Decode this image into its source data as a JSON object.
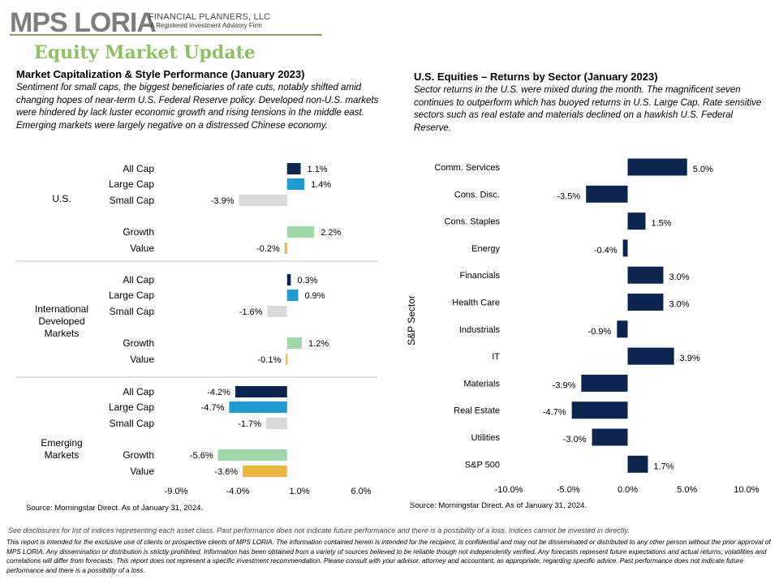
{
  "header": {
    "logo_text": "MPS LORIA",
    "logo_tagline": "FINANCIAL PLANNERS, LLC",
    "logo_subtagline": "A Registered Investment Advisory Firm",
    "page_title": "Equity Market Update"
  },
  "left_section": {
    "title": "Market Capitalization & Style Performance (January 2023)",
    "description": "Sentiment for small caps, the biggest beneficiaries of rate cuts, notably shifted amid changing hopes of near-term U.S. Federal Reserve policy. Developed non-U.S. markets were hindered by lack luster economic growth and rising tensions in the middle east. Emerging markets were largely negative on a distressed Chinese economy.",
    "source": "Source: Morningstar Direct. As of January 31, 2024."
  },
  "right_section": {
    "title": "U.S. Equities – Returns by Sector (January 2023)",
    "description": "Sector returns in the U.S. were mixed during the month. The magnificent seven continues to outperform which has buoyed returns in U.S. Large Cap. Rate sensitive sectors such as real estate and materials declined on a hawkish U.S. Federal Reserve.",
    "source": "Source: Morningstar Direct. As of January 31, 2024."
  },
  "footer": {
    "disclaimer_1": "See disclosures for list of indices representing each asset class. Past performance does not indicate future performance and there is a possibility of a loss. Indices cannot be invested in directly.",
    "disclaimer_2": "This report is intended for the exclusive use of clients or prospective clients of MPS LORIA. The information contained herein is intended for the recipient, is confidential and may not be disseminated or distributed to any other person without the prior approval of MPS LORIA. Any dissemination or distribution is strictly prohibited. Information has been obtained from a variety of sources believed to be reliable though not independently verified. Any forecasts represent future expectations and actual returns; volatilities and correlations will differ from forecasts. This report does not represent a specific investment recommendation. Please consult with your advisor, attorney and accountant, as appropriate, regarding specific advice. Past performance does not indicate future performance and there is a possibility of a loss."
  },
  "colors": {
    "all_cap": "#0b2550",
    "large_cap": "#1d9ad6",
    "small_cap": "#d9d9d9",
    "growth": "#9fd8a8",
    "value": "#efb43d",
    "sector_bar": "#0b2550",
    "title_green": "#8dc060"
  },
  "chart_data": [
    {
      "type": "bar",
      "orientation": "horizontal",
      "xlim": [
        -9.0,
        6.0
      ],
      "x_ticks": [
        "-9.0%",
        "-4.0%",
        "1.0%",
        "6.0%"
      ],
      "x_tick_values": [
        -9.0,
        -4.0,
        1.0,
        6.0
      ],
      "groups": [
        {
          "name": "U.S.",
          "items": [
            {
              "label": "All Cap",
              "value": 1.1,
              "data_label": "1.1%",
              "color_key": "all_cap"
            },
            {
              "label": "Large Cap",
              "value": 1.4,
              "data_label": "1.4%",
              "color_key": "large_cap"
            },
            {
              "label": "Small Cap",
              "value": -3.9,
              "data_label": "-3.9%",
              "color_key": "small_cap"
            },
            {
              "label": "Growth",
              "value": 2.2,
              "data_label": "2.2%",
              "color_key": "growth"
            },
            {
              "label": "Value",
              "value": -0.2,
              "data_label": "-0.2%",
              "color_key": "value"
            }
          ]
        },
        {
          "name": "International\nDeveloped\nMarkets",
          "items": [
            {
              "label": "All Cap",
              "value": 0.3,
              "data_label": "0.3%",
              "color_key": "all_cap"
            },
            {
              "label": "Large Cap",
              "value": 0.9,
              "data_label": "0.9%",
              "color_key": "large_cap"
            },
            {
              "label": "Small Cap",
              "value": -1.6,
              "data_label": "-1.6%",
              "color_key": "small_cap"
            },
            {
              "label": "Growth",
              "value": 1.2,
              "data_label": "1.2%",
              "color_key": "growth"
            },
            {
              "label": "Value",
              "value": -0.1,
              "data_label": "-0.1%",
              "color_key": "value"
            }
          ]
        },
        {
          "name": "Emerging\nMarkets",
          "items": [
            {
              "label": "All Cap",
              "value": -4.2,
              "data_label": "-4.2%",
              "color_key": "all_cap"
            },
            {
              "label": "Large Cap",
              "value": -4.7,
              "data_label": "-4.7%",
              "color_key": "large_cap"
            },
            {
              "label": "Small Cap",
              "value": -1.7,
              "data_label": "-1.7%",
              "color_key": "small_cap"
            },
            {
              "label": "Growth",
              "value": -5.6,
              "data_label": "-5.6%",
              "color_key": "growth"
            },
            {
              "label": "Value",
              "value": -3.6,
              "data_label": "-3.6%",
              "color_key": "value"
            }
          ]
        }
      ]
    },
    {
      "type": "bar",
      "orientation": "horizontal",
      "ylabel": "S&P Sector",
      "xlim": [
        -10.0,
        10.0
      ],
      "x_ticks": [
        "-10.0%",
        "-5.0%",
        "0.0%",
        "5.0%",
        "10.0%"
      ],
      "x_tick_values": [
        -10.0,
        -5.0,
        0.0,
        5.0,
        10.0
      ],
      "categories": [
        "Comm. Services",
        "Cons. Disc.",
        "Cons. Staples",
        "Energy",
        "Financials",
        "Health Care",
        "Industrials",
        "IT",
        "Materials",
        "Real Estate",
        "Utilities",
        "S&P 500"
      ],
      "values": [
        5.0,
        -3.5,
        1.5,
        -0.4,
        3.0,
        3.0,
        -0.9,
        3.9,
        -3.9,
        -4.7,
        -3.0,
        1.7
      ],
      "data_labels": [
        "5.0%",
        "-3.5%",
        "1.5%",
        "-0.4%",
        "3.0%",
        "3.0%",
        "-0.9%",
        "3.9%",
        "-3.9%",
        "-4.7%",
        "-3.0%",
        "1.7%"
      ]
    }
  ]
}
